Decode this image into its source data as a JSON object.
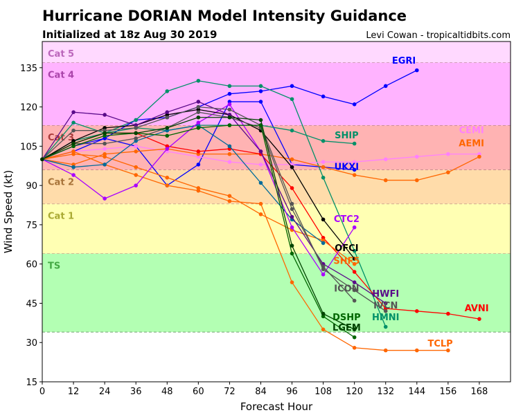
{
  "chart_data": {
    "type": "line",
    "title": "Hurricane DORIAN Model Intensity Guidance",
    "subtitle": "Initialized at 18z Aug 30 2019",
    "credit": "Levi Cowan - tropicaltidbits.com",
    "xlabel": "Forecast Hour",
    "ylabel": "Wind Speed (kt)",
    "xlim": [
      0,
      180
    ],
    "ylim": [
      15,
      145
    ],
    "xticks": [
      0,
      12,
      24,
      36,
      48,
      60,
      72,
      84,
      96,
      108,
      120,
      132,
      144,
      156,
      168
    ],
    "yticks": [
      15,
      30,
      45,
      60,
      75,
      90,
      105,
      120,
      135
    ],
    "grid": false,
    "bands": [
      {
        "label": "TS",
        "from": 34,
        "to": 64,
        "color": "#b3ffb3",
        "text_color": "#44aa44"
      },
      {
        "label": "Cat 1",
        "from": 64,
        "to": 83,
        "color": "#ffffb3",
        "text_color": "#aaaa33"
      },
      {
        "label": "Cat 2",
        "from": 83,
        "to": 96,
        "color": "#ffdcaa",
        "text_color": "#a8743a"
      },
      {
        "label": "Cat 3",
        "from": 96,
        "to": 113,
        "color": "#ffb3b3",
        "text_color": "#aa3a3a"
      },
      {
        "label": "Cat 4",
        "from": 113,
        "to": 137,
        "color": "#ffb3ff",
        "text_color": "#aa44aa"
      },
      {
        "label": "Cat 5",
        "from": 137,
        "to": 145,
        "color": "#ffd9ff",
        "text_color": "#bb66bb"
      }
    ],
    "series": [
      {
        "name": "EGRI",
        "color": "#0000ff",
        "x": [
          0,
          12,
          24,
          36,
          48,
          60,
          72,
          84,
          96,
          108,
          120,
          132,
          144
        ],
        "y": [
          100,
          103,
          108,
          115,
          116,
          120,
          125,
          126,
          128,
          124,
          121,
          128,
          134
        ]
      },
      {
        "name": "UKXI",
        "color": "#0000ff",
        "x": [
          0,
          12,
          24,
          36,
          48,
          60,
          72,
          84,
          96,
          108,
          120
        ],
        "y": [
          100,
          105,
          108,
          105,
          90,
          98,
          122,
          122,
          98,
          97,
          96
        ]
      },
      {
        "name": "HMNI",
        "color": "#009068",
        "x": [
          0,
          12,
          24,
          36,
          48,
          60,
          72,
          84,
          96,
          108,
          120,
          132
        ],
        "y": [
          100,
          114,
          110,
          115,
          126,
          130,
          128,
          128,
          123,
          93,
          65,
          36
        ]
      },
      {
        "name": "SHIP",
        "color": "#009068",
        "x": [
          0,
          12,
          24,
          36,
          48,
          60,
          72,
          84,
          96,
          108,
          120
        ],
        "y": [
          100,
          107,
          110,
          112,
          111,
          113,
          113,
          113,
          111,
          107,
          106
        ]
      },
      {
        "name": "CEMI",
        "color": "#ff80ff",
        "x": [
          0,
          12,
          24,
          36,
          48,
          60,
          72,
          84,
          96,
          108,
          120,
          132,
          144,
          156,
          168
        ],
        "y": [
          100,
          103,
          104,
          105,
          103,
          101,
          99,
          98,
          98,
          99,
          99,
          100,
          101,
          102,
          102
        ]
      },
      {
        "name": "AEMI",
        "color": "#ff6600",
        "x": [
          0,
          12,
          24,
          36,
          48,
          60,
          72,
          84,
          96,
          108,
          120,
          132,
          144,
          156,
          168
        ],
        "y": [
          100,
          98,
          102,
          103,
          104,
          102,
          102,
          102,
          100,
          97,
          94,
          92,
          92,
          95,
          101
        ]
      },
      {
        "name": "AVNI",
        "color": "#ff0000",
        "x": [
          0,
          12,
          24,
          36,
          48,
          60,
          72,
          84,
          96,
          108,
          120,
          132,
          144,
          156,
          168
        ],
        "y": [
          100,
          106,
          110,
          110,
          105,
          103,
          104,
          102,
          89,
          70,
          57,
          43,
          42,
          41,
          39
        ]
      },
      {
        "name": "TCLP",
        "color": "#ff6600",
        "x": [
          0,
          12,
          24,
          36,
          48,
          60,
          72,
          84,
          96,
          108,
          120,
          132,
          144,
          156
        ],
        "y": [
          100,
          103,
          98,
          94,
          90,
          88,
          84,
          83,
          53,
          35,
          28,
          27,
          27,
          27
        ]
      },
      {
        "name": "SHF5",
        "color": "#ff6600",
        "x": [
          0,
          12,
          24,
          36,
          48,
          60,
          72,
          84,
          96,
          108,
          120
        ],
        "y": [
          100,
          102,
          101,
          97,
          93,
          89,
          86,
          79,
          73,
          69,
          60
        ]
      },
      {
        "name": "",
        "color": "#006b9a",
        "x": [
          0,
          12,
          24,
          36,
          48,
          60,
          72,
          84,
          96,
          108
        ],
        "y": [
          100,
          97,
          98,
          107,
          111,
          113,
          105,
          91,
          77,
          68
        ]
      },
      {
        "name": "CTC2",
        "color": "#aa00ff",
        "x": [
          0,
          12,
          24,
          36,
          48,
          60,
          72,
          84,
          96,
          108,
          120
        ],
        "y": [
          100,
          94,
          85,
          90,
          104,
          114,
          121,
          103,
          74,
          56,
          74
        ]
      },
      {
        "name": "OFCI",
        "color": "#000000",
        "x": [
          0,
          12,
          24,
          36,
          48,
          60,
          72,
          84,
          96,
          108,
          120
        ],
        "y": [
          100,
          107,
          112,
          113,
          117,
          119,
          117,
          111,
          97,
          77,
          62
        ]
      },
      {
        "name": "HWFI",
        "color": "#5a0a8a",
        "x": [
          0,
          12,
          24,
          36,
          48,
          60,
          72,
          84,
          96,
          108,
          120,
          132
        ],
        "y": [
          100,
          118,
          117,
          113,
          118,
          122,
          117,
          103,
          78,
          60,
          53,
          45
        ]
      },
      {
        "name": "IVCN",
        "color": "#555555",
        "x": [
          0,
          12,
          24,
          36,
          48,
          60,
          72,
          84,
          96,
          108,
          120,
          132
        ],
        "y": [
          100,
          111,
          111,
          112,
          116,
          120,
          119,
          113,
          83,
          58,
          50,
          42
        ]
      },
      {
        "name": "ICON",
        "color": "#555555",
        "x": [
          0,
          12,
          24,
          36,
          48,
          60,
          72,
          84,
          96,
          108,
          120
        ],
        "y": [
          100,
          106,
          106,
          108,
          112,
          118,
          116,
          112,
          81,
          59,
          46
        ]
      },
      {
        "name": "DSHP",
        "color": "#006600",
        "x": [
          0,
          12,
          24,
          36,
          48,
          60,
          72,
          84,
          96,
          108,
          120
        ],
        "y": [
          100,
          105,
          109,
          110,
          109,
          112,
          113,
          113,
          64,
          40,
          32
        ]
      },
      {
        "name": "LGEM",
        "color": "#004400",
        "x": [
          0,
          12,
          24,
          36,
          48,
          60,
          72,
          84,
          96,
          108,
          120
        ],
        "y": [
          100,
          106,
          110,
          110,
          112,
          116,
          116,
          115,
          67,
          41,
          35
        ]
      }
    ]
  }
}
